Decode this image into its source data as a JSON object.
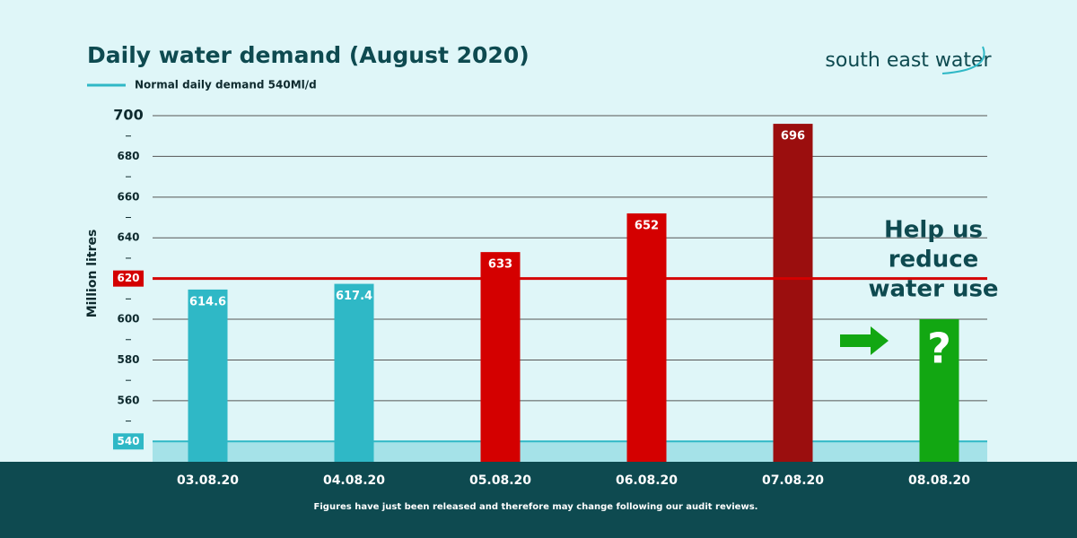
{
  "chart_data": {
    "type": "bar",
    "title": "Daily water demand (August 2020)",
    "brand": "south east water",
    "y_label": "Million litres",
    "note": "Figures have just been released and therefore may change following our audit reviews.",
    "categories": [
      "03.08.20",
      "04.08.20",
      "05.08.20",
      "06.08.20",
      "07.08.20",
      "08.08.20"
    ],
    "values": [
      614.6,
      617.4,
      633,
      652,
      696,
      600
    ],
    "value_labels": [
      "614.6",
      "617.4",
      "633",
      "652",
      "696",
      null
    ],
    "colors": [
      "#2fb8c6",
      "#2fb8c6",
      "#d40000",
      "#d40000",
      "#9b0e0e",
      "#12a712"
    ],
    "ylim": [
      530,
      700
    ],
    "yticks": [
      540,
      560,
      580,
      600,
      620,
      640,
      660,
      680,
      700
    ],
    "yminorticks": [
      550,
      570,
      590,
      610,
      630,
      650,
      670,
      690
    ],
    "grid": true,
    "reference_lines": [
      {
        "value": 620,
        "color": "#d40000"
      }
    ],
    "normal_demand": {
      "value": 540,
      "label": "Normal daily demand 540Ml/d",
      "color": "#2fb8c6"
    },
    "annotations": {
      "callout": [
        "Help us",
        "reduce",
        "water use"
      ],
      "mark": "?"
    }
  }
}
